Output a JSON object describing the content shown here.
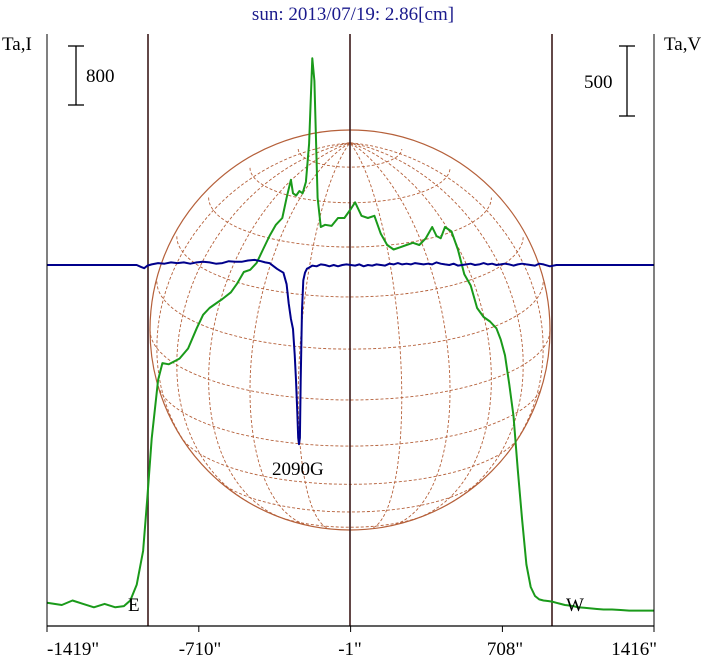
{
  "chart_data": {
    "type": "line",
    "title": "sun: 2013/07/19: 2.86[cm]",
    "ylabel_left": "Ta,I",
    "ylabel_right": "Ta,V",
    "scale_left_label": "800",
    "scale_right_label": "500",
    "xlim": [
      -1419,
      1416
    ],
    "x_ticks": [
      -1419,
      -710,
      -1,
      708,
      1416
    ],
    "x_tick_labels": [
      "-1419\"",
      "-710\"",
      "-1\"",
      "708\"",
      "1416\""
    ],
    "limb_labels": {
      "east": "E",
      "west": "W"
    },
    "annotation": "2090G",
    "colors": {
      "intensity": "#1a9a1a",
      "polarization": "#00008b",
      "disk": "#b5603a",
      "vertical_markers": "#3c1a1a",
      "title": "#1a1a8c"
    },
    "grid": false,
    "series": [
      {
        "key": "intensity",
        "x": [
          -1419,
          -1350,
          -1300,
          -1250,
          -1200,
          -1150,
          -1100,
          -1060,
          -1030,
          -1000,
          -970,
          -950,
          -930,
          -900,
          -880,
          -850,
          -800,
          -760,
          -720,
          -690,
          -660,
          -630,
          -600,
          -560,
          -530,
          -500,
          -470,
          -440,
          -410,
          -380,
          -350,
          -320,
          -300,
          -280,
          -270,
          -255,
          -240,
          -225,
          -210,
          -195,
          -180,
          -170,
          -155,
          -140,
          -120,
          -90,
          -60,
          -30,
          0,
          20,
          50,
          80,
          110,
          140,
          170,
          200,
          230,
          260,
          290,
          320,
          350,
          380,
          400,
          420,
          440,
          470,
          500,
          530,
          560,
          590,
          620,
          650,
          680,
          700,
          720,
          740,
          760,
          780,
          800,
          820,
          840,
          860,
          880,
          900,
          920,
          940,
          960,
          980,
          1000,
          1020,
          1040,
          1060,
          1090,
          1120,
          1150,
          1180,
          1220,
          1260,
          1300,
          1350,
          1416
        ],
        "y": [
          50,
          40,
          60,
          45,
          30,
          45,
          30,
          35,
          60,
          130,
          280,
          520,
          780,
          1040,
          1115,
          1110,
          1135,
          1180,
          1270,
          1330,
          1360,
          1380,
          1400,
          1430,
          1470,
          1520,
          1530,
          1560,
          1620,
          1680,
          1730,
          1760,
          1850,
          1930,
          1870,
          1860,
          1880,
          1870,
          1920,
          2090,
          2470,
          2370,
          1850,
          1720,
          1730,
          1725,
          1760,
          1760,
          1800,
          1830,
          1770,
          1760,
          1770,
          1690,
          1640,
          1620,
          1630,
          1640,
          1650,
          1640,
          1670,
          1720,
          1680,
          1670,
          1720,
          1700,
          1620,
          1510,
          1460,
          1360,
          1320,
          1300,
          1270,
          1220,
          1150,
          1020,
          880,
          640,
          420,
          220,
          120,
          80,
          65,
          60,
          58,
          55,
          50,
          45,
          40,
          38,
          35,
          30,
          28,
          25,
          22,
          20,
          20,
          18,
          15,
          15,
          15
        ]
      },
      {
        "key": "polarization",
        "x": [
          -1419,
          -1000,
          -980,
          -965,
          -950,
          -930,
          -900,
          -870,
          -840,
          -810,
          -780,
          -750,
          -720,
          -690,
          -660,
          -630,
          -600,
          -570,
          -540,
          -510,
          -480,
          -450,
          -420,
          -400,
          -380,
          -360,
          -345,
          -330,
          -315,
          -300,
          -290,
          -280,
          -270,
          -262,
          -256,
          -250,
          -246,
          -242,
          -238,
          -234,
          -228,
          -222,
          -214,
          -205,
          -195,
          -180,
          -160,
          -140,
          -120,
          -100,
          -80,
          -60,
          -40,
          -20,
          0,
          20,
          40,
          60,
          80,
          100,
          120,
          140,
          160,
          180,
          200,
          220,
          240,
          260,
          280,
          300,
          320,
          340,
          360,
          380,
          400,
          420,
          440,
          460,
          480,
          500,
          520,
          540,
          560,
          580,
          600,
          620,
          640,
          660,
          680,
          700,
          720,
          740,
          760,
          780,
          800,
          820,
          840,
          860,
          880,
          900,
          930,
          960,
          990,
          1050,
          1150,
          1250,
          1416
        ],
        "y": [
          0,
          0,
          -15,
          -25,
          -5,
          5,
          15,
          10,
          20,
          15,
          20,
          10,
          20,
          25,
          20,
          10,
          15,
          30,
          25,
          25,
          35,
          40,
          30,
          20,
          15,
          -10,
          -30,
          -45,
          -60,
          -150,
          -300,
          -420,
          -500,
          -700,
          -900,
          -1150,
          -1350,
          -1400,
          -1350,
          -900,
          -350,
          -120,
          -60,
          -30,
          -20,
          -5,
          -10,
          5,
          0,
          -10,
          0,
          -10,
          0,
          5,
          0,
          -5,
          5,
          -10,
          0,
          -5,
          5,
          0,
          -5,
          10,
          5,
          15,
          5,
          10,
          5,
          15,
          10,
          5,
          10,
          5,
          20,
          10,
          5,
          0,
          10,
          -5,
          0,
          5,
          10,
          0,
          5,
          15,
          5,
          10,
          0,
          5,
          10,
          5,
          -5,
          5,
          10,
          5,
          0,
          -5,
          10,
          5,
          -10,
          0,
          0,
          0,
          0,
          0,
          0
        ]
      }
    ]
  }
}
